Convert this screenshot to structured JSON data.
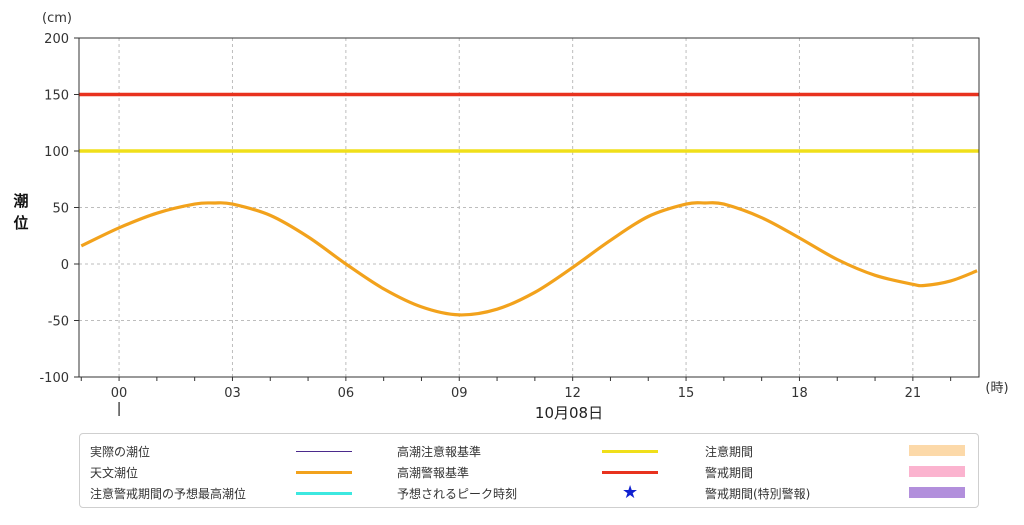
{
  "chart_data": {
    "type": "line",
    "y_unit": "(cm)",
    "ylabel": "潮位",
    "x_unit": "(時)",
    "date_label": "10月08日",
    "ylim": [
      -100,
      200
    ],
    "y_ticks": [
      "200",
      "150",
      "100",
      "50",
      "0",
      "-50",
      "-100"
    ],
    "x_tick_labels": [
      "00",
      "03",
      "06",
      "09",
      "12",
      "15",
      "18",
      "21"
    ],
    "grid": true,
    "series": [
      {
        "name": "天文潮位",
        "color": "#f2a21c",
        "x": [
          -1,
          0,
          1,
          2,
          2.5,
          3,
          4,
          5,
          6,
          7,
          8,
          9,
          10,
          11,
          12,
          13,
          14,
          15,
          15.5,
          16,
          17,
          18,
          19,
          20,
          21,
          21.3,
          22,
          22.7
        ],
        "y": [
          16,
          32,
          45,
          53,
          54,
          53,
          43,
          24,
          0,
          -22,
          -38,
          -45,
          -40,
          -25,
          -3,
          21,
          42,
          53,
          54,
          53,
          41,
          23,
          4,
          -10,
          -18,
          -19,
          -15,
          -6
        ]
      },
      {
        "name": "高潮注意報基準",
        "color": "#f0df1a",
        "constant": 100
      },
      {
        "name": "高潮警報基準",
        "color": "#e8321e",
        "constant": 150
      }
    ]
  },
  "legend": {
    "items": [
      {
        "label": "実際の潮位",
        "kind": "line",
        "color": "#4b2a8c"
      },
      {
        "label": "天文潮位",
        "kind": "line",
        "color": "#f2a21c"
      },
      {
        "label": "注意警戒期間の予想最高潮位",
        "kind": "line",
        "color": "#3de8e0"
      },
      {
        "label": "高潮注意報基準",
        "kind": "line",
        "color": "#f0df1a"
      },
      {
        "label": "高潮警報基準",
        "kind": "line",
        "color": "#e8321e"
      },
      {
        "label": "予想されるピーク時刻",
        "kind": "star",
        "color": "#1020d0",
        "symbol": "★"
      },
      {
        "label": "注意期間",
        "kind": "rect",
        "color": "#fcd9a9"
      },
      {
        "label": "警戒期間",
        "kind": "rect",
        "color": "#fbb3cf"
      },
      {
        "label": "警戒期間(特別警報)",
        "kind": "rect",
        "color": "#b28fdc"
      }
    ]
  }
}
